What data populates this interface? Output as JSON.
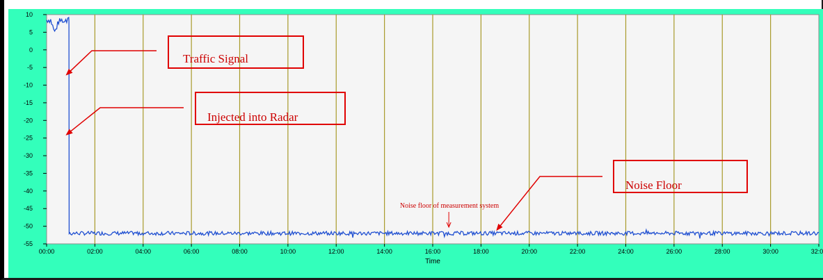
{
  "colors": {
    "panel_background": "#33ffbb",
    "plot_background": "#f5f5f5",
    "vertical_gridlines": "#a89a2a",
    "signal_trace": "#1f4fd1",
    "annotation_red": "#e00000"
  },
  "chart_data": {
    "type": "line",
    "title": "",
    "xlabel": "Time",
    "ylabel": "",
    "xlim": [
      "00:00",
      "32:00"
    ],
    "ylim": [
      -55,
      10
    ],
    "grid": "vertical-only",
    "x_tick_labels": [
      "00:00",
      "02:00",
      "04:00",
      "06:00",
      "08:00",
      "10:00",
      "12:00",
      "14:00",
      "16:00",
      "18:00",
      "20:00",
      "22:00",
      "24:00",
      "26:00",
      "28:00",
      "30:00",
      "32:00"
    ],
    "y_tick_labels": [
      "10",
      "5",
      "0",
      "-5",
      "-10",
      "-15",
      "-20",
      "-25",
      "-30",
      "-35",
      "-40",
      "-45",
      "-50",
      "-55"
    ],
    "series": [
      {
        "x": [
          "00:00",
          "00:10",
          "00:20",
          "00:30",
          "00:40",
          "00:50",
          "00:55",
          "00:56",
          "01:00",
          "04:00",
          "08:00",
          "12:00",
          "16:00",
          "20:00",
          "24:00",
          "28:00",
          "32:00"
        ],
        "y": [
          8.5,
          8.5,
          5,
          8,
          8.5,
          8,
          8.5,
          -52,
          -52,
          -52,
          -52,
          -52,
          -52,
          -52,
          -52,
          -52,
          -52
        ]
      }
    ],
    "annotations": [
      {
        "text": "Traffic Signal",
        "points_to": {
          "x": "00:50",
          "y": -7
        }
      },
      {
        "text": "Injected into Radar",
        "points_to": {
          "x": "00:50",
          "y": -24
        }
      },
      {
        "text": "Noise Floor",
        "points_to": {
          "x": "18:40",
          "y": -51
        }
      },
      {
        "text": "Noise floor of measurement system",
        "points_to": {
          "x": "16:40",
          "y": -51
        }
      }
    ]
  }
}
